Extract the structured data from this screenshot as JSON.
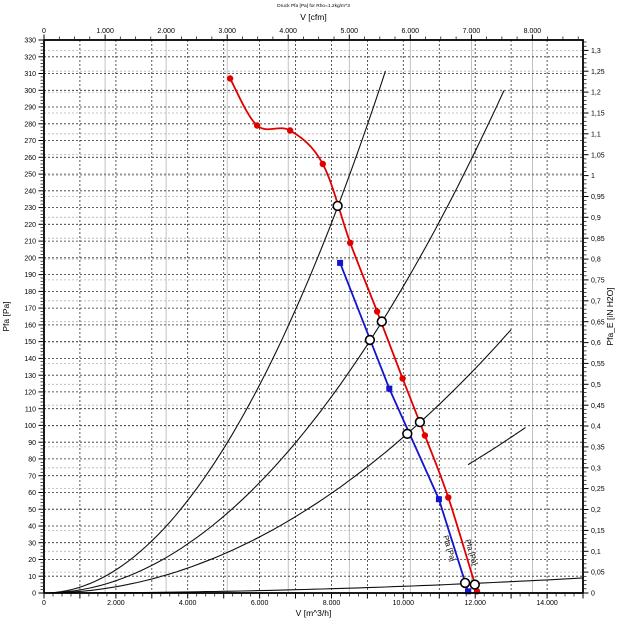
{
  "page": {
    "background": "#ffffff"
  },
  "chart_data": {
    "type": "line",
    "title": "Druck Pfa [Pa] for Rho=1.2kg/m^3",
    "axes": {
      "bottom": {
        "label": "V [m^3/h]",
        "min": 0,
        "max": 15000,
        "label_step": 2000,
        "grid_step": 1000,
        "minor_step": 250,
        "tick_labels": [
          "0",
          "2.000",
          "4.000",
          "6.000",
          "8.000",
          "10.000",
          "12.000",
          "14.000"
        ]
      },
      "top": {
        "label": "V [cfm]",
        "min": 0,
        "max": 8829,
        "unit_to_m3h": 1.699,
        "label_step": 1000,
        "minor_step": 250,
        "tick_labels": [
          "0",
          "1.000",
          "2.000",
          "3.000",
          "4.000",
          "5.000",
          "6.000",
          "7.000",
          "8.000"
        ]
      },
      "left": {
        "label": "Pfa [Pa]",
        "min": 0,
        "max": 330,
        "label_step": 10,
        "minor_step": 2,
        "tick_labels": [
          "0",
          "10",
          "20",
          "30",
          "40",
          "50",
          "60",
          "70",
          "80",
          "90",
          "100",
          "110",
          "120",
          "130",
          "140",
          "150",
          "160",
          "170",
          "180",
          "190",
          "200",
          "210",
          "220",
          "230",
          "240",
          "250",
          "260",
          "270",
          "280",
          "290",
          "300",
          "310",
          "320",
          "330"
        ]
      },
      "right": {
        "label": "Pfa_E [iN H2O]",
        "min": 0,
        "max": 1.32,
        "unit_to_pa": 249.09,
        "label_step": 0.05,
        "minor_step": 0.01,
        "tick_labels": [
          "0",
          "0,05",
          "0,1",
          "0,15",
          "0,2",
          "0,25",
          "0,3",
          "0,35",
          "0,4",
          "0,45",
          "0,5",
          "0,55",
          "0,6",
          "0,65",
          "0,7",
          "0,75",
          "0,8",
          "0,85",
          "0,9",
          "0,95",
          "1",
          "1,05",
          "1,1",
          "1,15",
          "1,2",
          "1,25",
          "1,3"
        ]
      }
    },
    "grid": {
      "primary_color": "#2e2e2e",
      "secondary_color": "#b3b3b3",
      "dash": "2 2"
    },
    "series": [
      {
        "name": "fan-curve-1",
        "color": "#e10000",
        "marker": "circle",
        "smooth": true,
        "curve_label": "Pfa [Pa]",
        "points": [
          [
            5180,
            307
          ],
          [
            5930,
            279
          ],
          [
            6850,
            276
          ],
          [
            7760,
            256
          ],
          [
            8520,
            209
          ],
          [
            9270,
            168
          ],
          [
            9980,
            128
          ],
          [
            10600,
            94
          ],
          [
            11250,
            57
          ],
          [
            12050,
            1
          ]
        ]
      },
      {
        "name": "fan-curve-2",
        "color": "#1414cf",
        "marker": "square",
        "smooth": false,
        "curve_label": "Pfa [Pa]",
        "points": [
          [
            8240,
            197
          ],
          [
            9610,
            122
          ],
          [
            10990,
            56
          ],
          [
            11800,
            1
          ]
        ]
      }
    ],
    "system_curves": [
      {
        "name": "system-curve-1",
        "k": 3.45e-06,
        "v_start": 0,
        "v_end": 9500
      },
      {
        "name": "system-curve-2",
        "k": 1.83e-06,
        "v_start": 0,
        "v_end": 12800
      },
      {
        "name": "system-curve-3",
        "k": 9.3e-07,
        "v_start": 0,
        "v_end": 13000
      },
      {
        "name": "system-curve-4",
        "k": 5.5e-07,
        "v_start": 11800,
        "v_end": 13400
      },
      {
        "name": "system-curve-5",
        "k": 4e-08,
        "v_start": 0,
        "v_end": 15000
      }
    ],
    "operating_points": [
      {
        "v": 8170,
        "p": 231,
        "on": "fan-curve-1"
      },
      {
        "v": 9400,
        "p": 162,
        "on": "fan-curve-1"
      },
      {
        "v": 10460,
        "p": 102,
        "on": "fan-curve-1"
      },
      {
        "v": 11990,
        "p": 5,
        "on": "fan-curve-1"
      },
      {
        "v": 9070,
        "p": 151,
        "on": "fan-curve-2"
      },
      {
        "v": 10110,
        "p": 95,
        "on": "fan-curve-2"
      },
      {
        "v": 11720,
        "p": 6,
        "on": "fan-curve-2"
      }
    ]
  }
}
